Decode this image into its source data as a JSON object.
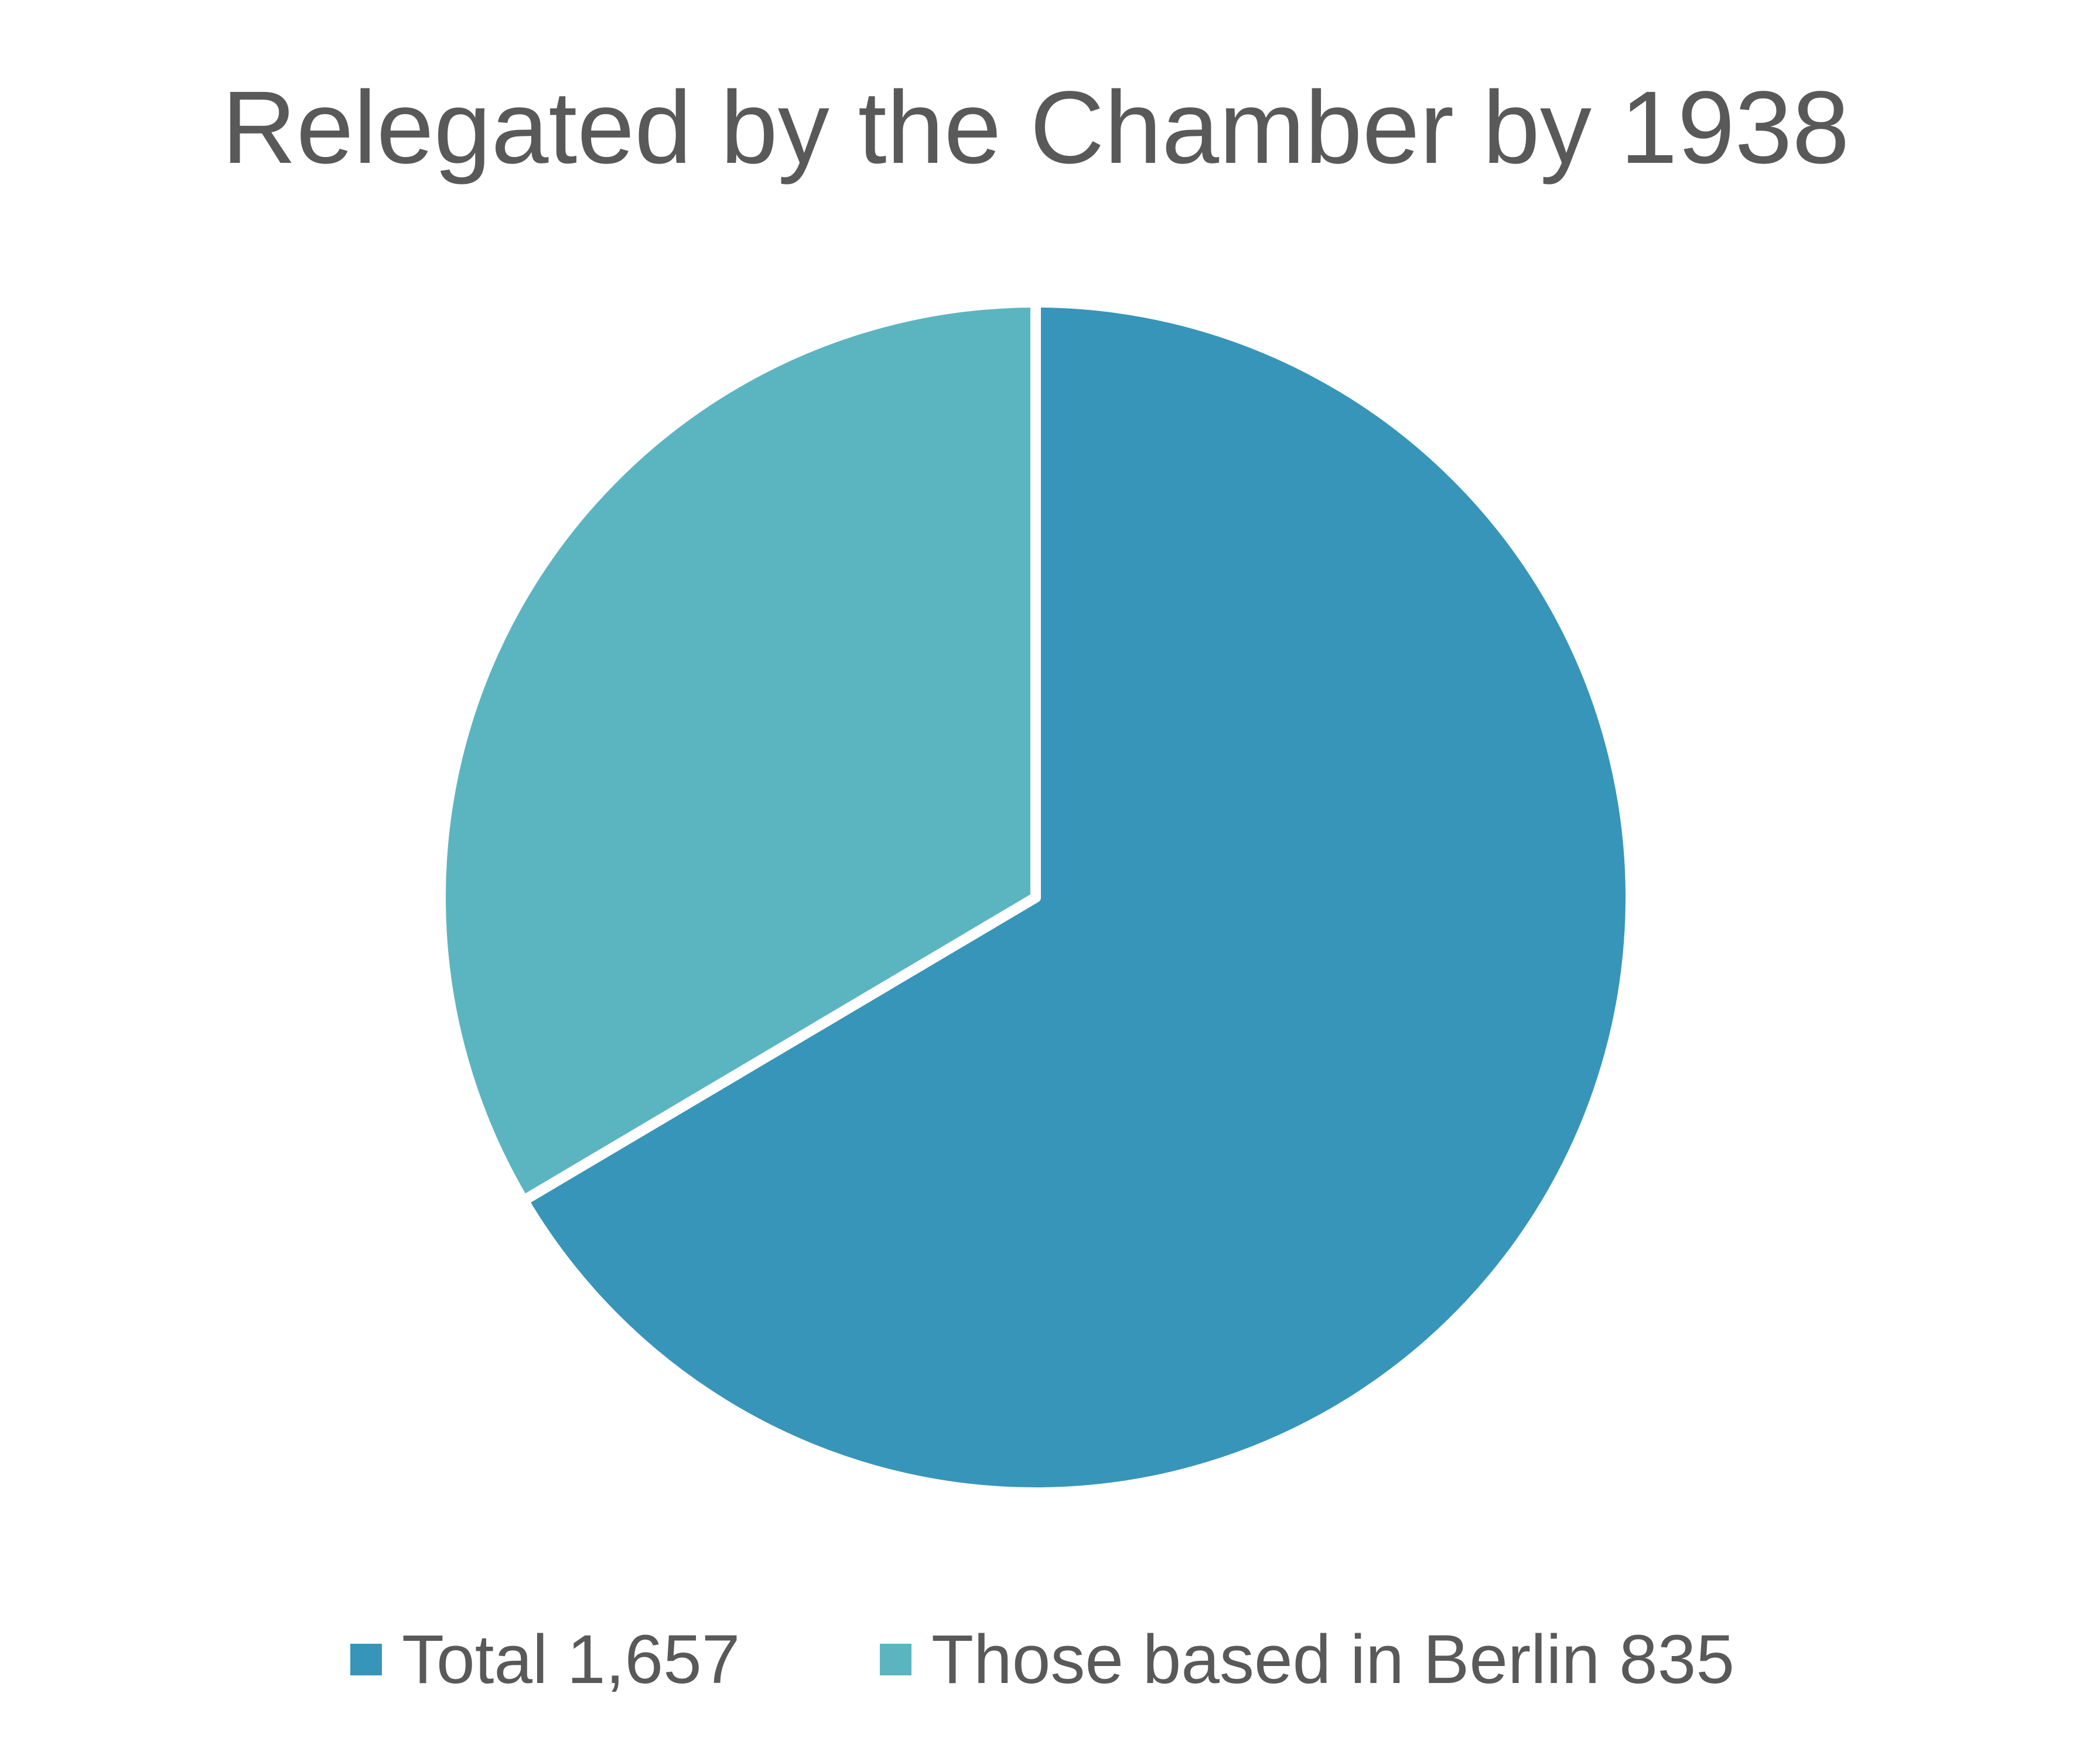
{
  "chart_data": {
    "type": "pie",
    "title": "Relegated by the Chamber by 1938",
    "categories": [
      "Total 1,657",
      "Those based in Berlin 835"
    ],
    "values": [
      1657,
      835
    ],
    "colors": [
      "#3795B9",
      "#5BB5C1"
    ],
    "legend": {
      "position": "bottom",
      "entries": [
        {
          "label": "Total 1,657",
          "color": "#3795B9"
        },
        {
          "label": "Those based in Berlin 835",
          "color": "#5BB5C1"
        }
      ]
    }
  }
}
